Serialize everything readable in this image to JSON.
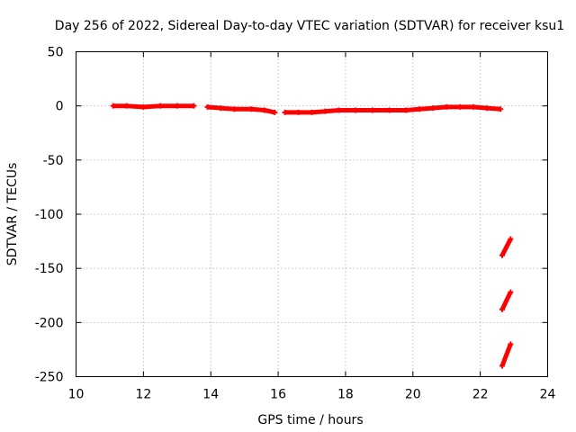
{
  "chart_data": {
    "type": "scatter",
    "title": "Day 256 of 2022, Sidereal Day-to-day VTEC variation (SDTVAR) for receiver ksu1",
    "xlabel": "GPS time / hours",
    "ylabel": "SDTVAR / TECUs",
    "xlim": [
      10,
      24
    ],
    "ylim": [
      -250,
      50
    ],
    "xticks": [
      "10",
      "12",
      "14",
      "16",
      "18",
      "20",
      "22",
      "24"
    ],
    "yticks": [
      "50",
      "0",
      "-50",
      "-100",
      "-150",
      "-200",
      "-250"
    ],
    "grid": true,
    "marker_color": "#ff0000",
    "series": [
      {
        "segments": [
          {
            "x": [
              11.1,
              11.5,
              12.0,
              12.5,
              13.0,
              13.5
            ],
            "y": [
              0,
              0,
              -1,
              0,
              0,
              0
            ]
          },
          {
            "x": [
              13.9,
              14.3,
              14.7,
              15.2,
              15.6,
              15.9
            ],
            "y": [
              -1,
              -2,
              -3,
              -3,
              -4,
              -6
            ]
          },
          {
            "x": [
              16.2,
              16.6,
              17.0,
              17.4,
              17.8,
              18.3,
              18.8,
              19.3,
              19.8,
              20.2,
              20.6,
              21.0,
              21.4,
              21.8,
              22.2,
              22.6
            ],
            "y": [
              -6,
              -6,
              -6,
              -5,
              -4,
              -4,
              -4,
              -4,
              -4,
              -3,
              -2,
              -1,
              -1,
              -1,
              -2,
              -3
            ]
          },
          {
            "x": [
              22.65,
              22.9
            ],
            "y": [
              -138,
              -123
            ]
          },
          {
            "x": [
              22.65,
              22.9
            ],
            "y": [
              -188,
              -172
            ]
          },
          {
            "x": [
              22.65,
              22.9
            ],
            "y": [
              -240,
              -220
            ]
          }
        ]
      }
    ]
  }
}
